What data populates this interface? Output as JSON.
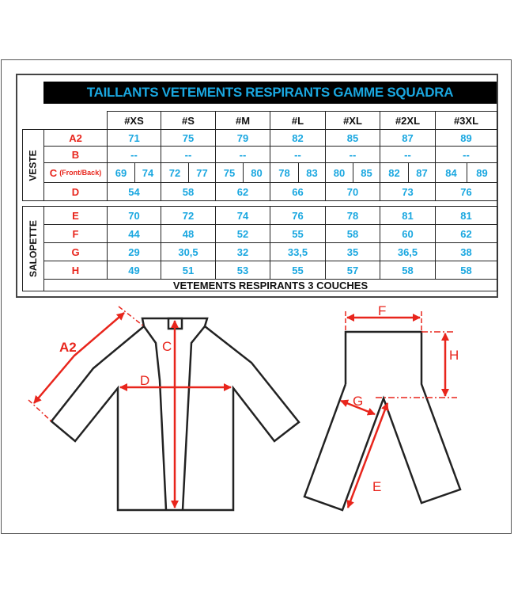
{
  "title": "TAILLANTS VETEMENTS RESPIRANTS GAMME SQUADRA",
  "sizes": [
    "#XS",
    "#S",
    "#M",
    "#L",
    "#XL",
    "#2XL",
    "#3XL"
  ],
  "veste": {
    "label": "VESTE",
    "rows": [
      {
        "label": "A2",
        "values": [
          "71",
          "75",
          "79",
          "82",
          "85",
          "87",
          "89"
        ]
      },
      {
        "label": "B",
        "values": [
          "--",
          "--",
          "--",
          "--",
          "--",
          "--",
          "--"
        ]
      },
      {
        "label": "C",
        "sublabel": "(Front/Back)",
        "values": [
          [
            "69",
            "74"
          ],
          [
            "72",
            "77"
          ],
          [
            "75",
            "80"
          ],
          [
            "78",
            "83"
          ],
          [
            "80",
            "85"
          ],
          [
            "82",
            "87"
          ],
          [
            "84",
            "89"
          ]
        ]
      },
      {
        "label": "D",
        "values": [
          "54",
          "58",
          "62",
          "66",
          "70",
          "73",
          "76"
        ]
      }
    ]
  },
  "salopette": {
    "label": "SALOPETTE",
    "rows": [
      {
        "label": "E",
        "values": [
          "70",
          "72",
          "74",
          "76",
          "78",
          "81",
          "81"
        ]
      },
      {
        "label": "F",
        "values": [
          "44",
          "48",
          "52",
          "55",
          "58",
          "60",
          "62"
        ]
      },
      {
        "label": "G",
        "values": [
          "29",
          "30,5",
          "32",
          "33,5",
          "35",
          "36,5",
          "38"
        ]
      },
      {
        "label": "H",
        "values": [
          "49",
          "51",
          "53",
          "55",
          "57",
          "58",
          "58"
        ]
      }
    ]
  },
  "footer": "VETEMENTS RESPIRANTS 3 COUCHES",
  "diagram_labels": {
    "a2": "A2",
    "c": "C",
    "d": "D",
    "e": "E",
    "f": "F",
    "g": "G",
    "h": "H"
  },
  "colors": {
    "title_bg": "#000000",
    "value": "#1aa7e0",
    "label": "#e8251c",
    "outline": "#222222"
  }
}
